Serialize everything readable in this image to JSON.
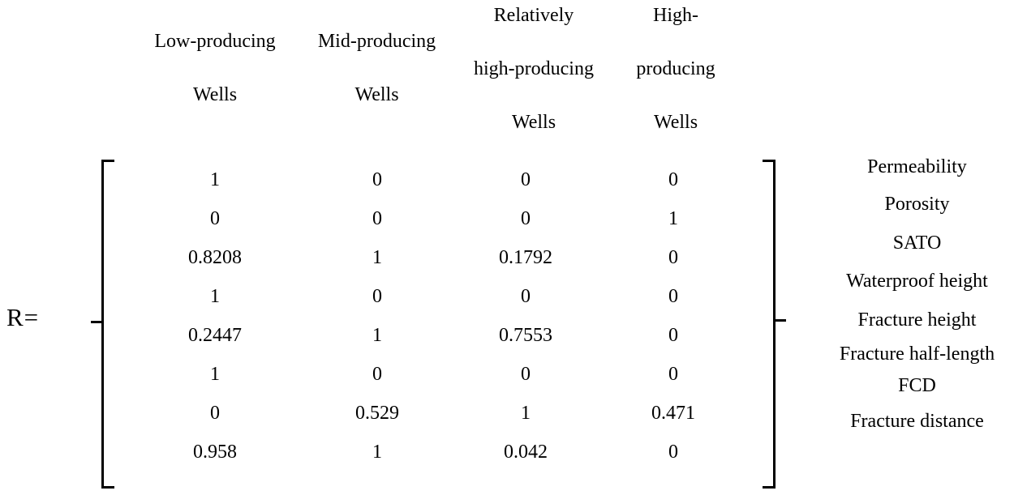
{
  "figure": {
    "lhs_label": "R=",
    "column_headers": [
      {
        "lines": [
          "Low-producing",
          "Wells"
        ]
      },
      {
        "lines": [
          "Mid-producing",
          "Wells"
        ]
      },
      {
        "lines": [
          "Relatively",
          "high-producing",
          "Wells"
        ]
      },
      {
        "lines": [
          "High-",
          "producing",
          "Wells"
        ]
      }
    ],
    "matrix_rows": [
      {
        "label": "Permeability",
        "values": [
          "1",
          "0",
          "0",
          "0"
        ]
      },
      {
        "label": "Porosity",
        "values": [
          "0",
          "0",
          "0",
          "1"
        ]
      },
      {
        "label": "SATO",
        "values": [
          "0.8208",
          "1",
          "0.1792",
          "0"
        ]
      },
      {
        "label": "Waterproof height",
        "values": [
          "1",
          "0",
          "0",
          "0"
        ]
      },
      {
        "label": "Fracture height",
        "values": [
          "0.2447",
          "1",
          "0.7553",
          "0"
        ]
      },
      {
        "label": "Fracture half-length",
        "values": [
          "1",
          "0",
          "0",
          "0"
        ]
      },
      {
        "label": "FCD",
        "values": [
          "0",
          "0.529",
          "1",
          "0.471"
        ]
      },
      {
        "label": "Fracture distance",
        "values": [
          "0.958",
          "1",
          "0.042",
          "0"
        ]
      }
    ],
    "text_color": "#000000",
    "background_color": "#ffffff"
  }
}
